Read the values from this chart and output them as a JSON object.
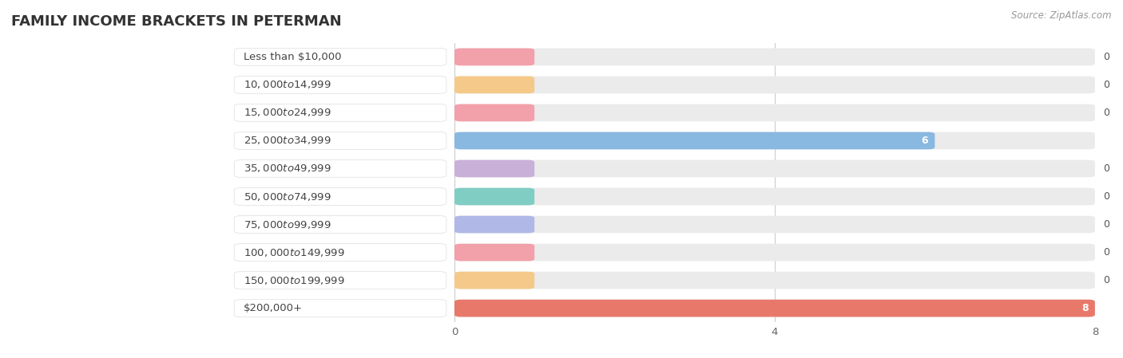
{
  "title": "FAMILY INCOME BRACKETS IN PETERMAN",
  "source": "Source: ZipAtlas.com",
  "categories": [
    "Less than $10,000",
    "$10,000 to $14,999",
    "$15,000 to $24,999",
    "$25,000 to $34,999",
    "$35,000 to $49,999",
    "$50,000 to $74,999",
    "$75,000 to $99,999",
    "$100,000 to $149,999",
    "$150,000 to $199,999",
    "$200,000+"
  ],
  "values": [
    0,
    0,
    0,
    6,
    0,
    0,
    0,
    0,
    0,
    8
  ],
  "bar_colors": [
    "#f2a0aa",
    "#f5c98a",
    "#f2a0aa",
    "#89b8e0",
    "#c9b0d8",
    "#80cdc4",
    "#b0b8e8",
    "#f2a0aa",
    "#f5c98a",
    "#e8796a"
  ],
  "zero_pill_colors": [
    "#f2a0aa",
    "#f5c98a",
    "#f2a0aa",
    "#89b8e0",
    "#c9b0d8",
    "#80cdc4",
    "#b0b8e8",
    "#f2a0aa",
    "#f5c98a",
    "#e8796a"
  ],
  "background_color": "#ffffff",
  "plot_bg_color": "#f5f5f5",
  "xlim": [
    0,
    8
  ],
  "xticks": [
    0,
    4,
    8
  ],
  "bar_height": 0.62,
  "title_fontsize": 13,
  "label_fontsize": 9.5,
  "tick_fontsize": 9.5,
  "value_fontsize": 9
}
